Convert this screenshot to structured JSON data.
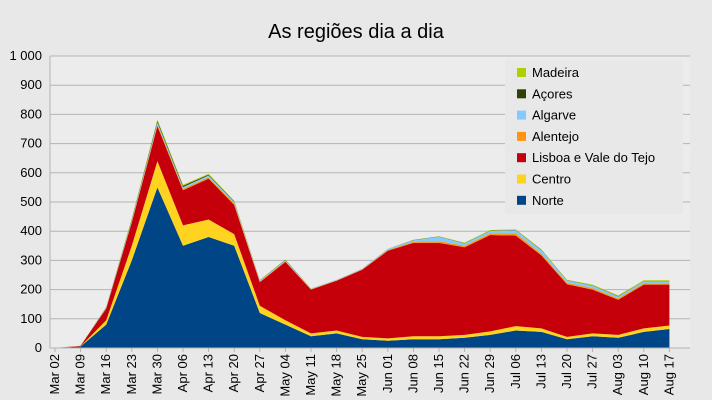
{
  "chart_data": {
    "type": "area",
    "stacked": true,
    "title": "As regiões dia a dia",
    "xlabel": "",
    "ylabel": "",
    "ylim": [
      0,
      1000
    ],
    "yticks": [
      0,
      100,
      200,
      300,
      400,
      500,
      600,
      700,
      800,
      900,
      1000
    ],
    "ytick_labels": [
      "0",
      "100",
      "200",
      "300",
      "400",
      "500",
      "600",
      "700",
      "800",
      "900",
      "1 000"
    ],
    "xticks": [
      "Mar 02",
      "Mar 09",
      "Mar 16",
      "Mar 23",
      "Mar 30",
      "Apr 06",
      "Apr 13",
      "Apr 20",
      "Apr 27",
      "May 04",
      "May 11",
      "May 18",
      "May 25",
      "Jun 01",
      "Jun 08",
      "Jun 15",
      "Jun 22",
      "Jun 29",
      "Jul 06",
      "Jul 13",
      "Jul 20",
      "Jul 27",
      "Aug 03",
      "Aug 10",
      "Aug 17"
    ],
    "grid": true,
    "legend_position": "top-right",
    "colors": {
      "Norte": "#004586",
      "Centro": "#ffd320",
      "Lisboa e Vale do Tejo": "#c5000b",
      "Alentejo": "#ff950e",
      "Algarve": "#83caff",
      "Açores": "#314004",
      "Madeira": "#aecf00"
    },
    "legend_order": [
      "Madeira",
      "Açores",
      "Algarve",
      "Alentejo",
      "Lisboa e Vale do Tejo",
      "Centro",
      "Norte"
    ],
    "stack_order": [
      "Norte",
      "Centro",
      "Lisboa e Vale do Tejo",
      "Alentejo",
      "Algarve",
      "Açores",
      "Madeira"
    ],
    "series_weekly_approx": [
      {
        "name": "Norte",
        "x": [
          "Mar 02",
          "Mar 09",
          "Mar 16",
          "Mar 23",
          "Mar 30",
          "Apr 06",
          "Apr 13",
          "Apr 20",
          "Apr 27",
          "May 04",
          "May 11",
          "May 18",
          "May 25",
          "Jun 01",
          "Jun 08",
          "Jun 15",
          "Jun 22",
          "Jun 29",
          "Jul 06",
          "Jul 13",
          "Jul 20",
          "Jul 27",
          "Aug 03",
          "Aug 10",
          "Aug 17"
        ],
        "values": [
          0,
          5,
          80,
          300,
          550,
          350,
          380,
          350,
          120,
          80,
          40,
          50,
          30,
          25,
          30,
          30,
          35,
          45,
          60,
          55,
          30,
          40,
          35,
          55,
          65
        ]
      },
      {
        "name": "Centro",
        "values": [
          0,
          1,
          15,
          50,
          90,
          70,
          60,
          40,
          25,
          15,
          10,
          10,
          8,
          8,
          10,
          10,
          10,
          12,
          15,
          12,
          8,
          10,
          10,
          12,
          12
        ]
      },
      {
        "name": "Lisboa e Vale do Tejo",
        "values": [
          0,
          2,
          40,
          80,
          120,
          120,
          140,
          100,
          80,
          200,
          150,
          170,
          230,
          300,
          320,
          320,
          300,
          330,
          310,
          250,
          180,
          150,
          120,
          150,
          140
        ]
      },
      {
        "name": "Alentejo",
        "values": [
          0,
          0,
          1,
          3,
          5,
          5,
          5,
          5,
          3,
          3,
          2,
          2,
          2,
          3,
          4,
          6,
          5,
          6,
          8,
          6,
          5,
          5,
          5,
          5,
          5
        ]
      },
      {
        "name": "Algarve",
        "values": [
          0,
          0,
          2,
          5,
          8,
          6,
          6,
          5,
          3,
          3,
          2,
          2,
          2,
          4,
          5,
          15,
          8,
          8,
          10,
          12,
          8,
          8,
          6,
          6,
          6
        ]
      },
      {
        "name": "Açores",
        "values": [
          0,
          0,
          1,
          3,
          5,
          4,
          3,
          2,
          1,
          1,
          0,
          0,
          0,
          0,
          1,
          1,
          1,
          1,
          1,
          1,
          1,
          1,
          1,
          1,
          1
        ]
      },
      {
        "name": "Madeira",
        "values": [
          0,
          0,
          1,
          4,
          5,
          4,
          3,
          2,
          1,
          1,
          0,
          0,
          0,
          0,
          1,
          1,
          2,
          2,
          2,
          2,
          2,
          3,
          3,
          3,
          3
        ]
      }
    ]
  }
}
